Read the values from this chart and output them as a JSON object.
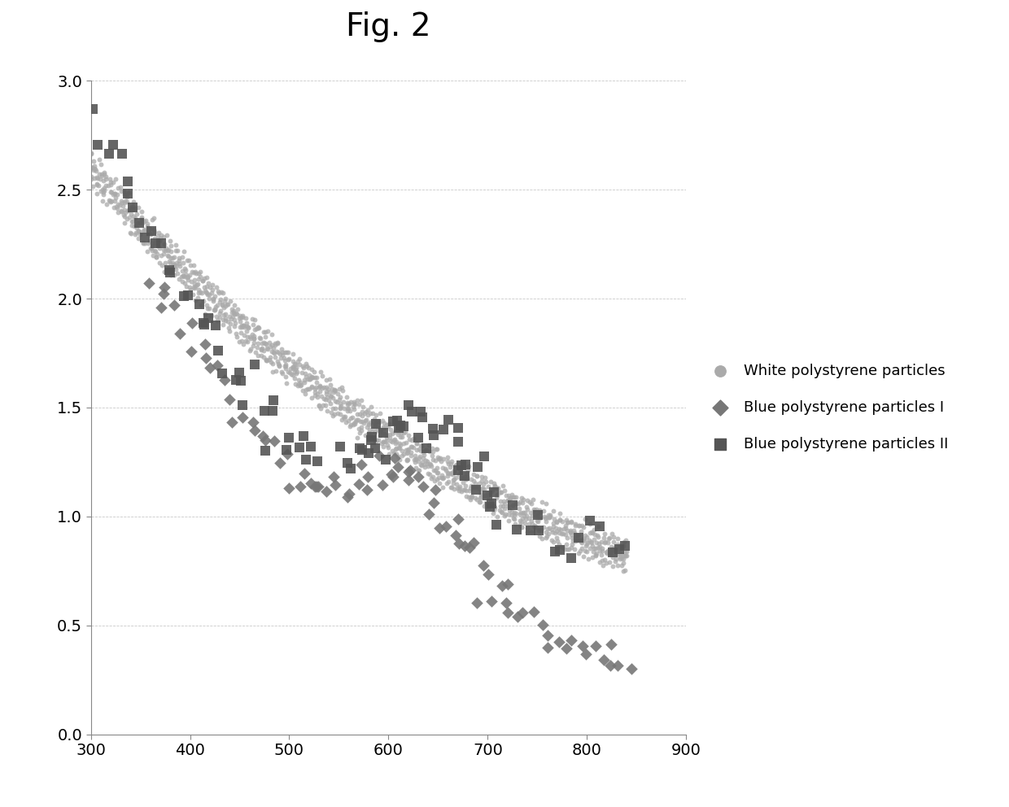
{
  "title": "Fig. 2",
  "title_fontsize": 28,
  "xlim": [
    300,
    900
  ],
  "ylim": [
    0,
    3.0
  ],
  "xticks": [
    300,
    400,
    500,
    600,
    700,
    800,
    900
  ],
  "yticks": [
    0,
    0.5,
    1.0,
    1.5,
    2.0,
    2.5,
    3.0
  ],
  "legend_labels": [
    "White polystyrene particles",
    "Blue polystyrene particles I",
    "Blue polystyrene particles II"
  ],
  "background_color": "#ffffff",
  "grid_color": "#bbbbbb",
  "series1_color": "#aaaaaa",
  "series2_color": "#777777",
  "series3_color": "#555555"
}
